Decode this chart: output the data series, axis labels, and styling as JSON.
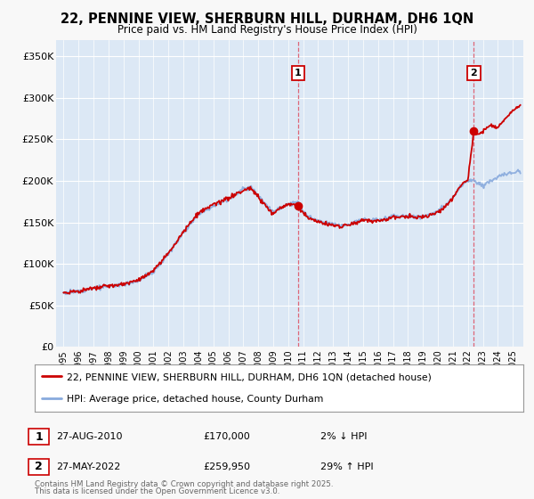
{
  "title": "22, PENNINE VIEW, SHERBURN HILL, DURHAM, DH6 1QN",
  "subtitle": "Price paid vs. HM Land Registry's House Price Index (HPI)",
  "background_color": "#f8f8f8",
  "plot_bg_color": "#dce8f5",
  "grid_color": "#ffffff",
  "red_line_color": "#cc0000",
  "blue_line_color": "#88aadd",
  "dashed_line_color": "#dd6677",
  "transaction1_x": 2010.65,
  "transaction1_y": 170000,
  "transaction2_x": 2022.4,
  "transaction2_y": 259950,
  "ylim": [
    0,
    370000
  ],
  "xlim": [
    1994.5,
    2025.7
  ],
  "yticks": [
    0,
    50000,
    100000,
    150000,
    200000,
    250000,
    300000,
    350000
  ],
  "ytick_labels": [
    "£0",
    "£50K",
    "£100K",
    "£150K",
    "£200K",
    "£250K",
    "£300K",
    "£350K"
  ],
  "xtick_years": [
    1995,
    1996,
    1997,
    1998,
    1999,
    2000,
    2001,
    2002,
    2003,
    2004,
    2005,
    2006,
    2007,
    2008,
    2009,
    2010,
    2011,
    2012,
    2013,
    2014,
    2015,
    2016,
    2017,
    2018,
    2019,
    2020,
    2021,
    2022,
    2023,
    2024,
    2025
  ],
  "legend_line1": "22, PENNINE VIEW, SHERBURN HILL, DURHAM, DH6 1QN (detached house)",
  "legend_line2": "HPI: Average price, detached house, County Durham",
  "sale1_label": "1",
  "sale1_date": "27-AUG-2010",
  "sale1_price": "£170,000",
  "sale1_pct": "2% ↓ HPI",
  "sale2_label": "2",
  "sale2_date": "27-MAY-2022",
  "sale2_price": "£259,950",
  "sale2_pct": "29% ↑ HPI",
  "footer1": "Contains HM Land Registry data © Crown copyright and database right 2025.",
  "footer2": "This data is licensed under the Open Government Licence v3.0.",
  "hpi_keypoints": [
    [
      1995,
      65000
    ],
    [
      1996,
      67000
    ],
    [
      1997,
      71000
    ],
    [
      1998,
      73000
    ],
    [
      1999,
      75000
    ],
    [
      2000,
      80000
    ],
    [
      2001,
      90000
    ],
    [
      2002,
      112000
    ],
    [
      2003,
      138000
    ],
    [
      2004,
      160000
    ],
    [
      2005,
      170000
    ],
    [
      2006,
      178000
    ],
    [
      2007,
      190000
    ],
    [
      2007.5,
      193000
    ],
    [
      2008,
      183000
    ],
    [
      2008.5,
      172000
    ],
    [
      2009,
      162000
    ],
    [
      2009.5,
      168000
    ],
    [
      2010,
      172000
    ],
    [
      2010.65,
      174000
    ],
    [
      2011,
      163000
    ],
    [
      2011.5,
      155000
    ],
    [
      2012,
      152000
    ],
    [
      2012.5,
      149000
    ],
    [
      2013,
      148000
    ],
    [
      2013.5,
      146000
    ],
    [
      2014,
      148000
    ],
    [
      2014.5,
      151000
    ],
    [
      2015,
      154000
    ],
    [
      2015.5,
      152000
    ],
    [
      2016,
      153000
    ],
    [
      2016.5,
      155000
    ],
    [
      2017,
      158000
    ],
    [
      2017.5,
      157000
    ],
    [
      2018,
      158000
    ],
    [
      2018.5,
      157000
    ],
    [
      2019,
      157000
    ],
    [
      2019.5,
      160000
    ],
    [
      2020,
      163000
    ],
    [
      2020.5,
      170000
    ],
    [
      2021,
      180000
    ],
    [
      2021.5,
      193000
    ],
    [
      2022,
      200000
    ],
    [
      2022.4,
      201000
    ],
    [
      2022.5,
      198000
    ],
    [
      2023,
      195000
    ],
    [
      2023.5,
      200000
    ],
    [
      2024,
      205000
    ],
    [
      2024.5,
      208000
    ],
    [
      2025,
      210000
    ],
    [
      2025.5,
      213000
    ]
  ],
  "prop_keypoints": [
    [
      1995,
      65500
    ],
    [
      1996,
      67000
    ],
    [
      1997,
      70500
    ],
    [
      1998,
      73500
    ],
    [
      1999,
      75000
    ],
    [
      2000,
      81000
    ],
    [
      2001,
      91000
    ],
    [
      2002,
      113000
    ],
    [
      2003,
      139000
    ],
    [
      2004,
      161000
    ],
    [
      2005,
      171000
    ],
    [
      2006,
      179000
    ],
    [
      2007,
      188000
    ],
    [
      2007.5,
      192000
    ],
    [
      2008,
      180000
    ],
    [
      2008.5,
      170000
    ],
    [
      2009,
      160000
    ],
    [
      2009.5,
      167000
    ],
    [
      2010,
      172000
    ],
    [
      2010.65,
      170000
    ],
    [
      2011,
      161000
    ],
    [
      2011.5,
      154000
    ],
    [
      2012,
      151000
    ],
    [
      2012.5,
      148000
    ],
    [
      2013,
      147000
    ],
    [
      2013.5,
      145000
    ],
    [
      2014,
      147000
    ],
    [
      2014.5,
      150000
    ],
    [
      2015,
      153000
    ],
    [
      2015.5,
      151000
    ],
    [
      2016,
      152000
    ],
    [
      2016.5,
      154000
    ],
    [
      2017,
      157000
    ],
    [
      2017.5,
      156000
    ],
    [
      2018,
      157000
    ],
    [
      2018.5,
      156000
    ],
    [
      2019,
      156000
    ],
    [
      2019.5,
      159000
    ],
    [
      2020,
      162000
    ],
    [
      2020.5,
      169000
    ],
    [
      2021,
      179000
    ],
    [
      2021.5,
      195000
    ],
    [
      2022,
      202000
    ],
    [
      2022.4,
      259950
    ],
    [
      2022.6,
      255000
    ],
    [
      2023,
      260000
    ],
    [
      2023.5,
      268000
    ],
    [
      2024,
      265000
    ],
    [
      2024.5,
      275000
    ],
    [
      2025,
      285000
    ],
    [
      2025.5,
      290000
    ]
  ]
}
